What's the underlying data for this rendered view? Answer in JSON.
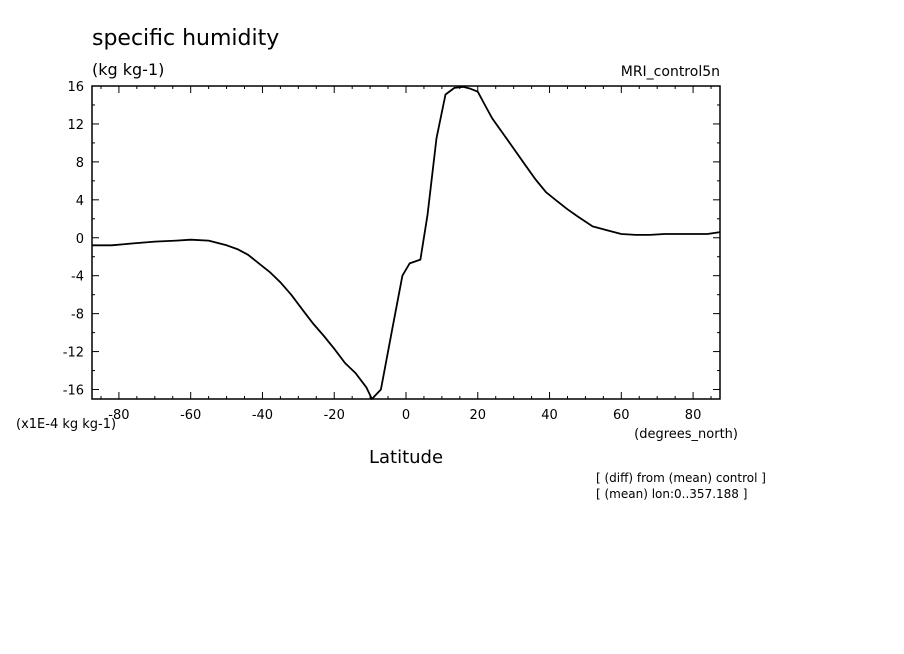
{
  "chart_data": {
    "type": "line",
    "title": "specific humidity",
    "units": "(kg kg-1)",
    "dataset": "MRI_control5n",
    "scale_label": "(x1E-4 kg kg-1)",
    "xlabel": "Latitude",
    "xunits": "(degrees_north)",
    "xlim": [
      -87.5,
      87.5
    ],
    "ylim": [
      -17,
      16
    ],
    "xticks": [
      -80,
      -60,
      -40,
      -20,
      0,
      20,
      40,
      60,
      80
    ],
    "xtick_labels": [
      "-80",
      "-60",
      "-40",
      "-20",
      "0",
      "20",
      "40",
      "60",
      "80"
    ],
    "yticks": [
      16,
      12,
      8,
      4,
      0,
      -4,
      -8,
      -12,
      -16
    ],
    "ytick_labels": [
      "16",
      "12",
      "8",
      "4",
      "0",
      "-4",
      "-8",
      "-12",
      "-16"
    ],
    "notes": [
      "[ (diff) from (mean) control ]",
      "[ (mean) lon:0..357.188 ]"
    ],
    "series": [
      {
        "x": [
          -87.5,
          -82,
          -76,
          -70,
          -64,
          -60,
          -55,
          -50,
          -47,
          -44,
          -41,
          -38,
          -35,
          -32,
          -29,
          -26,
          -23,
          -20,
          -17,
          -14,
          -11,
          -9.5,
          -7,
          -4,
          -1,
          1,
          4,
          6,
          8.5,
          11,
          13.5,
          16,
          18,
          20,
          22,
          24,
          27,
          30,
          33,
          36,
          39,
          42,
          45,
          48,
          52,
          56,
          60,
          64,
          68,
          72,
          76,
          80,
          84,
          87.5
        ],
        "y": [
          -0.8,
          -0.8,
          -0.6,
          -0.4,
          -0.3,
          -0.2,
          -0.3,
          -0.8,
          -1.2,
          -1.8,
          -2.7,
          -3.6,
          -4.7,
          -6.0,
          -7.5,
          -9.0,
          -10.3,
          -11.7,
          -13.2,
          -14.3,
          -15.8,
          -17.0,
          -16.0,
          -10.0,
          -4.0,
          -2.7,
          -2.3,
          2.4,
          10.5,
          15.1,
          15.8,
          15.9,
          15.7,
          15.4,
          14.0,
          12.6,
          11.0,
          9.4,
          7.8,
          6.2,
          4.8,
          3.9,
          3.0,
          2.2,
          1.2,
          0.8,
          0.4,
          0.3,
          0.3,
          0.4,
          0.4,
          0.4,
          0.4,
          0.6
        ]
      }
    ]
  }
}
